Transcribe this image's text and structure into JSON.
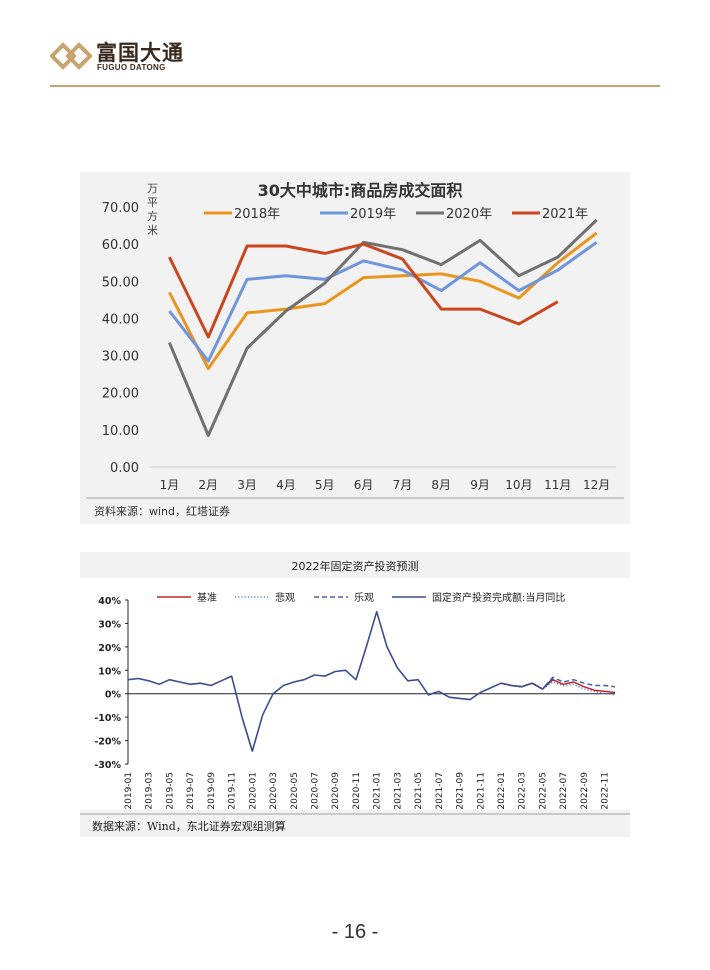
{
  "header": {
    "brand_cn": "富国大通",
    "brand_en": "FUGUO DATONG",
    "accent_color": "#c7a46f"
  },
  "chart_data": [
    {
      "type": "line",
      "title": "30大中城市:商品房成交面积",
      "ylabel": "万平方米",
      "categories": [
        "1月",
        "2月",
        "3月",
        "4月",
        "5月",
        "6月",
        "7月",
        "8月",
        "9月",
        "10月",
        "11月",
        "12月"
      ],
      "ylim": [
        0,
        70
      ],
      "yticks": [
        "0.00",
        "10.00",
        "20.00",
        "30.00",
        "40.00",
        "50.00",
        "60.00",
        "70.00"
      ],
      "legend_position": "top",
      "series": [
        {
          "name": "2018年",
          "color": "#e8961e",
          "values": [
            47,
            26.5,
            41.5,
            42.5,
            44,
            51,
            51.5,
            52,
            50,
            45.5,
            55,
            63
          ]
        },
        {
          "name": "2019年",
          "color": "#6f95db",
          "values": [
            42,
            28.5,
            50.5,
            51.5,
            50.5,
            55.5,
            53,
            47.5,
            55,
            47.5,
            53,
            60.5
          ]
        },
        {
          "name": "2020年",
          "color": "#707070",
          "values": [
            33.5,
            8.5,
            32,
            42,
            49.5,
            60.5,
            58.5,
            54.5,
            61,
            51.5,
            56.5,
            66.5
          ]
        },
        {
          "name": "2021年",
          "color": "#c9461f",
          "values": [
            56.5,
            35,
            59.5,
            59.5,
            57.5,
            60,
            56,
            42.5,
            42.5,
            38.5,
            44.5,
            null
          ]
        }
      ],
      "source": "资料来源：wind，红塔证券"
    },
    {
      "type": "line",
      "title": "2022年固定资产投资预测",
      "categories": [
        "2019-01",
        "2019-03",
        "2019-05",
        "2019-07",
        "2019-09",
        "2019-11",
        "2020-01",
        "2020-03",
        "2020-05",
        "2020-07",
        "2020-09",
        "2020-11",
        "2021-01",
        "2021-03",
        "2021-05",
        "2021-07",
        "2021-09",
        "2021-11",
        "2022-01",
        "2022-03",
        "2022-05",
        "2022-07",
        "2022-09",
        "2022-11"
      ],
      "ylim": [
        -30,
        40
      ],
      "yticks": [
        "-30%",
        "-20%",
        "-10%",
        "0%",
        "10%",
        "20%",
        "30%",
        "40%"
      ],
      "legend_position": "top",
      "actual_x": [
        0,
        1,
        2,
        3,
        4,
        5,
        6,
        7,
        8,
        9,
        10,
        11,
        12,
        13,
        14,
        15,
        16,
        17,
        18,
        19,
        20,
        21,
        22,
        23,
        24,
        25,
        26,
        27,
        28,
        29,
        30,
        31,
        32,
        33,
        34,
        35,
        36,
        37,
        38,
        39,
        40,
        41,
        42,
        43,
        44
      ],
      "series": [
        {
          "name": "基准",
          "color": "#c0262b",
          "style": "solid",
          "x": [
            36,
            37,
            38,
            39,
            40,
            41,
            42,
            43,
            44,
            45,
            46,
            47
          ],
          "values": [
            4.5,
            3.5,
            3,
            4.5,
            2,
            6,
            4,
            5,
            3,
            1.5,
            1,
            0.5
          ]
        },
        {
          "name": "悲观",
          "color": "#5b86c5",
          "style": "dotted",
          "x": [
            36,
            37,
            38,
            39,
            40,
            41,
            42,
            43,
            44,
            45,
            46,
            47
          ],
          "values": [
            4.5,
            3.5,
            3,
            4.5,
            2,
            5,
            3.5,
            4,
            2,
            1,
            0,
            -0.5
          ]
        },
        {
          "name": "乐观",
          "color": "#4a5fa8",
          "style": "dashed",
          "x": [
            36,
            37,
            38,
            39,
            40,
            41,
            42,
            43,
            44,
            45,
            46,
            47
          ],
          "values": [
            4.5,
            3.5,
            3,
            4.5,
            2,
            7,
            5,
            6,
            4.5,
            3.5,
            3.5,
            3
          ]
        },
        {
          "name": "固定资产投资完成额:当月同比",
          "color": "#3d4d8f",
          "style": "solid",
          "x": [
            0,
            1,
            2,
            3,
            4,
            5,
            6,
            7,
            8,
            9,
            10,
            11,
            12,
            13,
            14,
            15,
            16,
            17,
            18,
            19,
            20,
            21,
            22,
            23,
            24,
            25,
            26,
            27,
            28,
            29,
            30,
            31,
            32,
            33,
            34,
            35,
            36,
            37,
            38,
            39,
            40,
            41
          ],
          "values": [
            6,
            6.5,
            5.5,
            4,
            6,
            5,
            4,
            4.5,
            3.5,
            5.5,
            7.5,
            -10,
            -24.5,
            -9,
            0,
            3.5,
            5,
            6,
            8,
            7.5,
            9.5,
            10,
            6,
            20,
            35,
            20,
            11,
            5.5,
            6,
            -0.5,
            1,
            -1.5,
            -2,
            -2.5,
            0.5,
            2.5,
            4.5,
            3.5,
            3,
            4.5,
            2,
            6.5
          ]
        }
      ],
      "source": "数据来源：Wind，东北证券宏观组测算"
    }
  ],
  "footer": {
    "page_number": "- 16 -"
  }
}
